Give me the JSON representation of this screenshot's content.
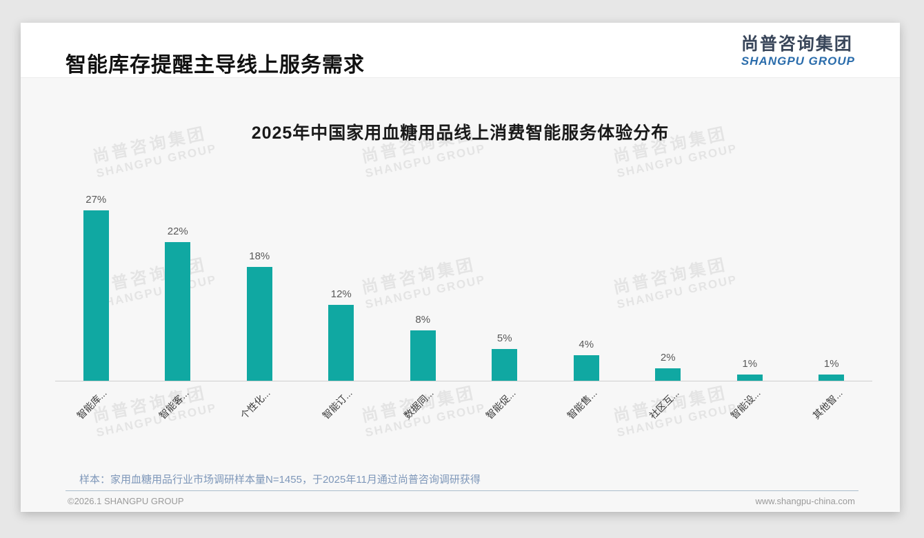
{
  "slide": {
    "title": "智能库存提醒主导线上服务需求",
    "logo_cn": "尚普咨询集团",
    "logo_en": "SHANGPU GROUP",
    "watermark_cn": "尚普咨询集团",
    "watermark_en": "SHANGPU GROUP",
    "sample_note": "样本：家用血糖用品行业市场调研样本量N=1455，于2025年11月通过尚普咨询调研获得",
    "copyright": "©2026.1 SHANGPU GROUP",
    "website": "www.shangpu-china.com"
  },
  "chart_data": {
    "type": "bar",
    "title": "2025年中国家用血糖用品线上消费智能服务体验分布",
    "categories": [
      "智能库...",
      "智能客...",
      "个性化...",
      "智能订...",
      "数据同...",
      "智能促...",
      "智能售...",
      "社区互...",
      "智能设...",
      "其他智..."
    ],
    "values": [
      27,
      22,
      18,
      12,
      8,
      5,
      4,
      2,
      1,
      1
    ],
    "unit": "%",
    "bar_color": "#10A8A2",
    "value_label_color": "#595959",
    "xlabel": "",
    "ylabel": "",
    "ylim": [
      0,
      30
    ],
    "grid": false,
    "legend": false,
    "x_label_rotation": 45
  }
}
